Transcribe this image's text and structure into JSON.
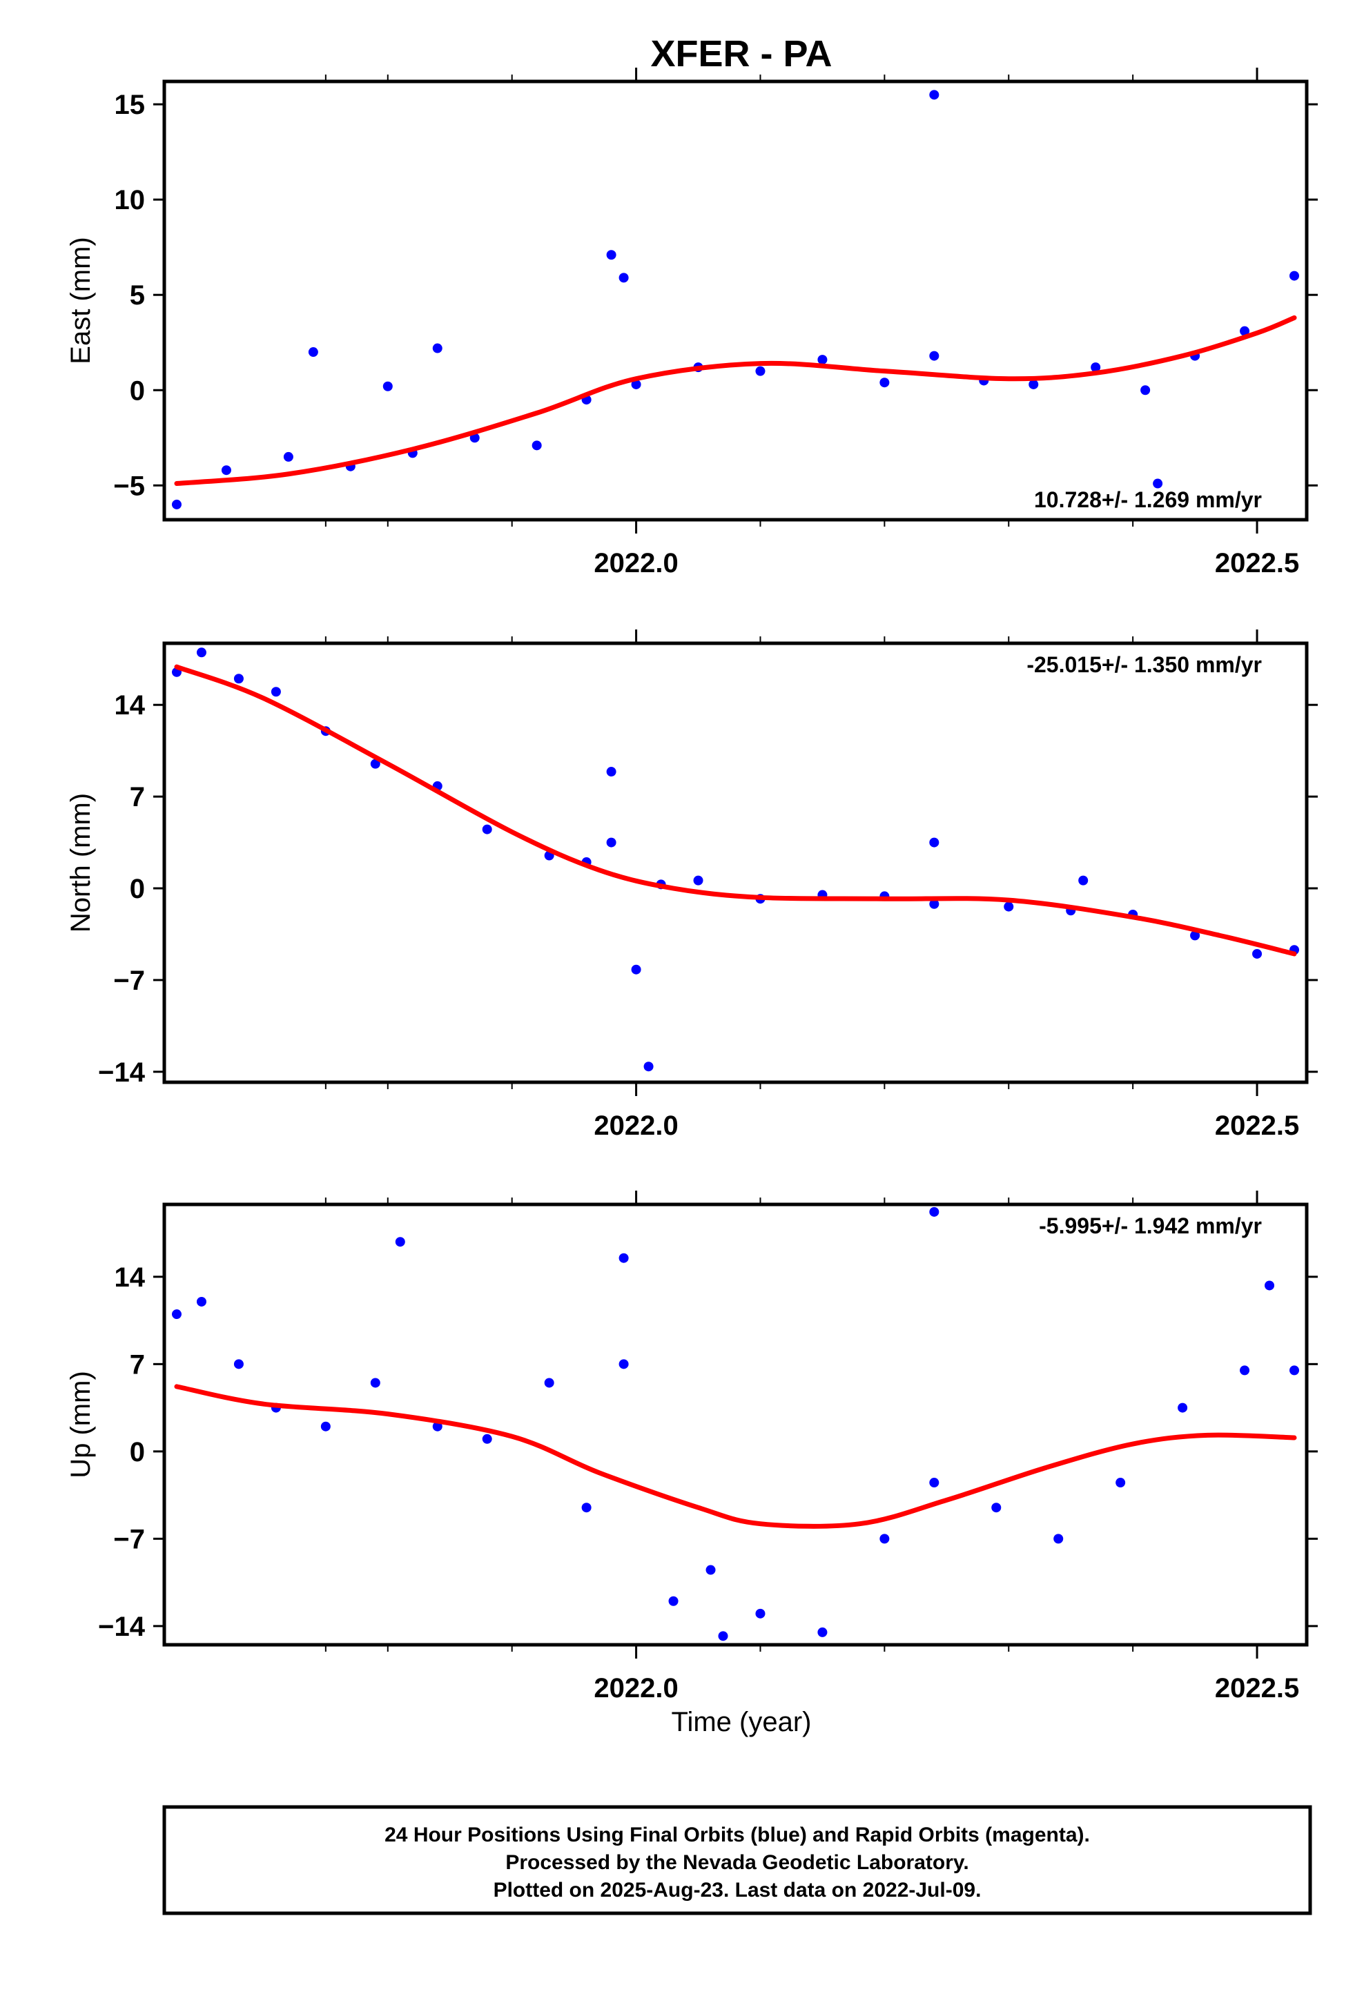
{
  "chart_data": {
    "type": "scatter",
    "title": "XFER - PA",
    "xlabel": "Time (year)",
    "x_ticks": [
      "2022.0",
      "2022.5"
    ],
    "xlim": [
      2021.62,
      2022.54
    ],
    "colors": {
      "points": "#0000ff",
      "fit": "#ff0000",
      "frame": "#000000"
    },
    "footer": [
      "24 Hour Positions Using Final Orbits (blue) and Rapid Orbits (magenta).",
      "Processed by the Nevada Geodetic Laboratory.",
      "Plotted on 2025-Aug-23. Last data on 2022-Jul-09."
    ],
    "panels": [
      {
        "ylabel": "East (mm)",
        "ylim": [
          -6.8,
          16.2
        ],
        "yticks": [
          -5,
          0,
          5,
          10,
          15
        ],
        "ytick_labels": [
          "−5",
          "0",
          "5",
          "10",
          "15"
        ],
        "rate": "10.728+/- 1.269 mm/yr",
        "rate_position": "bottom-right",
        "fit": {
          "x": [
            2021.63,
            2021.72,
            2021.82,
            2021.92,
            2022.0,
            2022.1,
            2022.2,
            2022.3,
            2022.37,
            2022.44,
            2022.5,
            2022.53
          ],
          "y": [
            -4.9,
            -4.4,
            -3.1,
            -1.2,
            0.6,
            1.4,
            1.0,
            0.6,
            0.9,
            1.8,
            3.0,
            3.8
          ]
        },
        "points": {
          "x": [
            2021.63,
            2021.67,
            2021.72,
            2021.77,
            2021.82,
            2021.87,
            2021.92,
            2021.96,
            2022.0,
            2022.05,
            2022.1,
            2022.15,
            2022.2,
            2022.24,
            2022.28,
            2022.32,
            2022.37,
            2022.41,
            2022.45,
            2022.49,
            2022.53,
            2021.74,
            2021.8,
            2021.84,
            2021.98,
            2021.99,
            2022.24,
            2022.42
          ],
          "y": [
            -6.0,
            -4.2,
            -3.5,
            -4.0,
            -3.3,
            -2.5,
            -2.9,
            -0.5,
            0.3,
            1.2,
            1.0,
            1.6,
            0.4,
            1.8,
            0.5,
            0.3,
            1.2,
            0.0,
            1.8,
            3.1,
            6.0,
            2.0,
            0.2,
            2.2,
            7.1,
            5.9,
            15.5,
            -4.9
          ]
        }
      },
      {
        "ylabel": "North (mm)",
        "ylim": [
          -14.8,
          18.7
        ],
        "yticks": [
          -14,
          -7,
          0,
          7,
          14
        ],
        "ytick_labels": [
          "−14",
          "−7",
          "0",
          "7",
          "14"
        ],
        "rate": "-25.015+/- 1.350 mm/yr",
        "rate_position": "top-right",
        "fit": {
          "x": [
            2021.63,
            2021.7,
            2021.8,
            2021.9,
            2021.97,
            2022.03,
            2022.1,
            2022.2,
            2022.3,
            2022.4,
            2022.47,
            2022.53
          ],
          "y": [
            16.9,
            14.5,
            9.5,
            4.3,
            1.4,
            0.0,
            -0.7,
            -0.8,
            -0.9,
            -2.2,
            -3.6,
            -5.0
          ]
        },
        "points": {
          "x": [
            2021.63,
            2021.65,
            2021.68,
            2021.71,
            2021.75,
            2021.79,
            2021.84,
            2021.88,
            2021.93,
            2021.96,
            2021.98,
            2022.02,
            2022.05,
            2022.1,
            2022.15,
            2022.2,
            2022.24,
            2022.3,
            2022.35,
            2022.4,
            2022.45,
            2022.5,
            2022.53,
            2022.0,
            2022.01,
            2021.98,
            2022.24,
            2022.36
          ],
          "y": [
            16.5,
            18.0,
            16.0,
            15.0,
            12.0,
            9.5,
            7.8,
            4.5,
            2.5,
            2.0,
            3.5,
            0.3,
            0.6,
            -0.8,
            -0.5,
            -0.6,
            -1.2,
            -1.4,
            -1.7,
            -2.0,
            -3.6,
            -5.0,
            -4.7,
            -6.2,
            -13.6,
            8.9,
            3.5,
            0.6
          ]
        }
      },
      {
        "ylabel": "Up (mm)",
        "ylim": [
          -15.5,
          19.8
        ],
        "yticks": [
          -14,
          -7,
          0,
          7,
          14
        ],
        "ytick_labels": [
          "−14",
          "−7",
          "0",
          "7",
          "14"
        ],
        "rate": "-5.995+/- 1.942 mm/yr",
        "rate_position": "top-right",
        "fit": {
          "x": [
            2021.63,
            2021.7,
            2021.8,
            2021.9,
            2021.97,
            2022.05,
            2022.1,
            2022.18,
            2022.25,
            2022.33,
            2022.4,
            2022.46,
            2022.53
          ],
          "y": [
            5.2,
            3.8,
            3.0,
            1.2,
            -1.7,
            -4.5,
            -5.8,
            -5.8,
            -3.9,
            -1.3,
            0.6,
            1.3,
            1.1
          ]
        },
        "points": {
          "x": [
            2021.63,
            2021.65,
            2021.68,
            2021.71,
            2021.75,
            2021.79,
            2021.84,
            2021.88,
            2021.93,
            2021.96,
            2021.99,
            2022.03,
            2022.06,
            2022.1,
            2022.15,
            2022.2,
            2022.24,
            2022.29,
            2022.34,
            2022.39,
            2022.44,
            2022.49,
            2022.53,
            2021.81,
            2021.99,
            2022.24,
            2022.51,
            2022.07
          ],
          "y": [
            11.0,
            12.0,
            7.0,
            3.5,
            2.0,
            5.5,
            2.0,
            1.0,
            5.5,
            -4.5,
            7.0,
            -12.0,
            -9.5,
            -13.0,
            -14.5,
            -7.0,
            -2.5,
            -4.5,
            -7.0,
            -2.5,
            3.5,
            6.5,
            6.5,
            16.8,
            15.5,
            19.2,
            13.3,
            -14.8
          ]
        }
      }
    ]
  }
}
